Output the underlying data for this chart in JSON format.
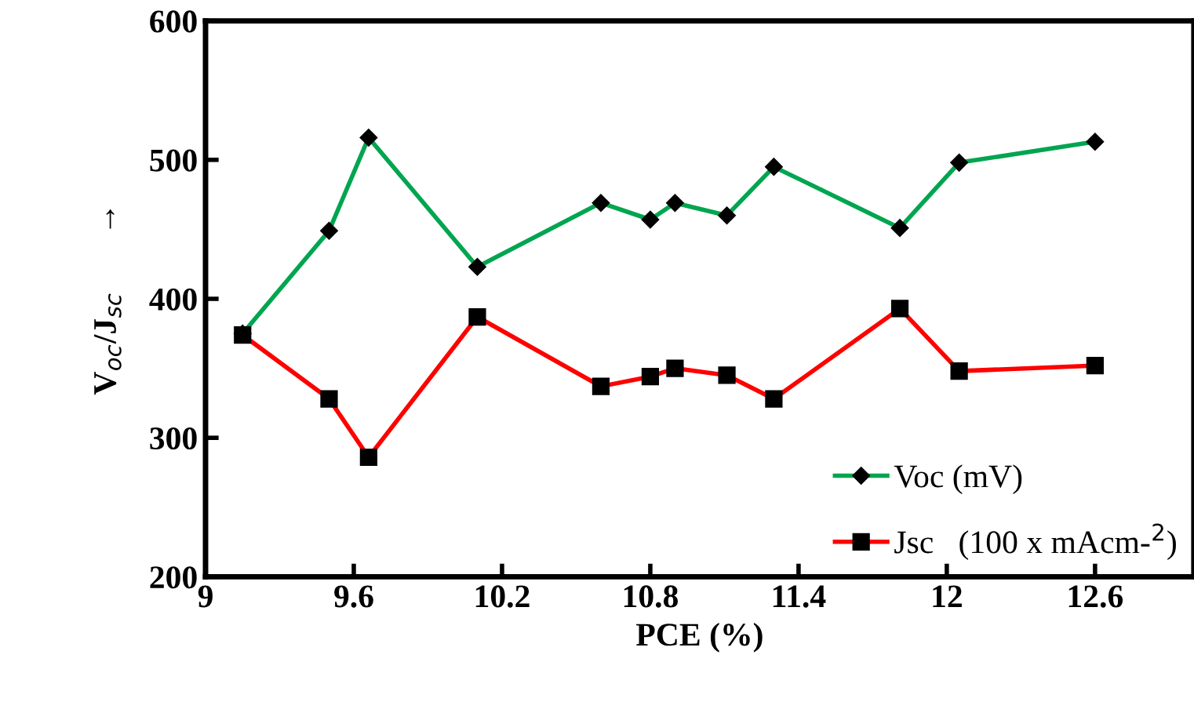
{
  "chart_data": {
    "type": "line",
    "xlabel": "PCE (%)",
    "ylabel": "V$_{oc}$/J$_{sc}$       →",
    "x": [
      9.15,
      9.5,
      9.66,
      10.1,
      10.6,
      10.8,
      10.9,
      11.11,
      11.3,
      11.81,
      12.05,
      12.6
    ],
    "series": [
      {
        "name": "Voc (mV)",
        "color": "#00a550",
        "marker": "diamond",
        "values": [
          375,
          449,
          516,
          423,
          469,
          457,
          469,
          460,
          495,
          451,
          498,
          513
        ]
      },
      {
        "name": "Jsc   (100 x mAcm-$^{2}$)",
        "color": "#ff0000",
        "marker": "square",
        "values": [
          374,
          328,
          286,
          387,
          337,
          344,
          350,
          345,
          328,
          393,
          348,
          352
        ]
      }
    ],
    "xlim": [
      9,
      13
    ],
    "xticks": [
      9,
      9.6,
      10.2,
      10.8,
      11.4,
      12,
      12.6
    ],
    "ylim": [
      200,
      600
    ],
    "yticks": [
      200,
      300,
      400,
      500,
      600
    ],
    "grid": false,
    "legend": "bottom right"
  }
}
